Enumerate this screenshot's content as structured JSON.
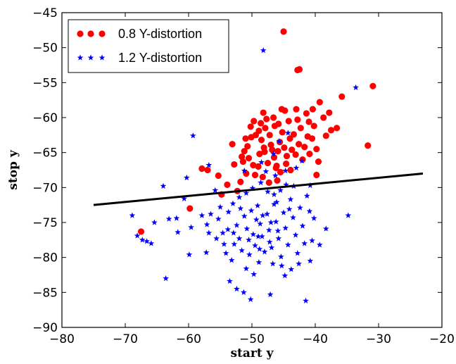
{
  "chart_data": {
    "type": "scatter",
    "title": "",
    "xlabel": "start  y",
    "ylabel": "stop  y",
    "xlim": [
      -80,
      -20
    ],
    "ylim": [
      -90,
      -45
    ],
    "xticks": [
      -80,
      -70,
      -60,
      -50,
      -40,
      -30,
      -20
    ],
    "yticks": [
      -90,
      -85,
      -80,
      -75,
      -70,
      -65,
      -60,
      -55,
      -50,
      -45
    ],
    "xtick_labels": [
      "−80",
      "−70",
      "−60",
      "−50",
      "−40",
      "−30",
      "−20"
    ],
    "ytick_labels": [
      "−90",
      "−85",
      "−80",
      "−75",
      "−70",
      "−65",
      "−60",
      "−55",
      "−50",
      "−45"
    ],
    "grid": false,
    "legend_position": "top-left",
    "series": [
      {
        "name": "0.8 Y-distortion",
        "marker": "circle",
        "color": "#ff0000",
        "points": [
          [
            -45.0,
            -47.7
          ],
          [
            -42.5,
            -53.1
          ],
          [
            -42.8,
            -53.2
          ],
          [
            -30.9,
            -55.5
          ],
          [
            -35.8,
            -57.0
          ],
          [
            -39.3,
            -57.8
          ],
          [
            -31.7,
            -64.0
          ],
          [
            -67.5,
            -76.3
          ],
          [
            -59.8,
            -73.0
          ],
          [
            -57.9,
            -67.3
          ],
          [
            -57.0,
            -67.5
          ],
          [
            -54.8,
            -71.0
          ],
          [
            -55.3,
            -68.3
          ],
          [
            -53.9,
            -69.6
          ],
          [
            -53.1,
            -63.8
          ],
          [
            -52.3,
            -70.5
          ],
          [
            -51.8,
            -69.2
          ],
          [
            -50.9,
            -68.0
          ],
          [
            -51.4,
            -66.3
          ],
          [
            -51.2,
            -64.8
          ],
          [
            -51.0,
            -63.0
          ],
          [
            -50.5,
            -65.8
          ],
          [
            -49.8,
            -66.8
          ],
          [
            -49.5,
            -68.2
          ],
          [
            -49.0,
            -67.0
          ],
          [
            -50.2,
            -61.3
          ],
          [
            -49.7,
            -60.5
          ],
          [
            -48.9,
            -61.9
          ],
          [
            -48.5,
            -63.2
          ],
          [
            -48.1,
            -64.3
          ],
          [
            -48.8,
            -65.2
          ],
          [
            -47.7,
            -60.2
          ],
          [
            -47.2,
            -62.5
          ],
          [
            -47.0,
            -63.9
          ],
          [
            -46.4,
            -61.2
          ],
          [
            -46.8,
            -64.6
          ],
          [
            -46.5,
            -65.7
          ],
          [
            -46.1,
            -66.9
          ],
          [
            -45.6,
            -63.5
          ],
          [
            -45.2,
            -62.1
          ],
          [
            -45.8,
            -60.9
          ],
          [
            -44.9,
            -64.3
          ],
          [
            -44.5,
            -65.5
          ],
          [
            -44.8,
            -59.0
          ],
          [
            -44.2,
            -60.5
          ],
          [
            -44.0,
            -63.0
          ],
          [
            -43.7,
            -64.6
          ],
          [
            -43.4,
            -62.4
          ],
          [
            -43.1,
            -65.3
          ],
          [
            -42.8,
            -60.3
          ],
          [
            -42.6,
            -63.8
          ],
          [
            -42.3,
            -61.5
          ],
          [
            -42.0,
            -66.0
          ],
          [
            -41.7,
            -64.2
          ],
          [
            -41.4,
            -59.4
          ],
          [
            -41.2,
            -62.7
          ],
          [
            -40.9,
            -65.2
          ],
          [
            -40.5,
            -63.0
          ],
          [
            -40.2,
            -61.2
          ],
          [
            -39.8,
            -64.5
          ],
          [
            -39.5,
            -66.3
          ],
          [
            -39.8,
            -68.2
          ],
          [
            -38.3,
            -62.6
          ],
          [
            -37.5,
            -61.8
          ],
          [
            -38.7,
            -60.0
          ],
          [
            -37.8,
            -59.3
          ],
          [
            -36.6,
            -61.5
          ],
          [
            -48.2,
            -59.3
          ],
          [
            -47.5,
            -66.5
          ],
          [
            -46.2,
            -67.2
          ],
          [
            -45.5,
            -67.8
          ],
          [
            -44.6,
            -66.6
          ],
          [
            -43.9,
            -67.5
          ],
          [
            -47.3,
            -69.3
          ],
          [
            -46.0,
            -69.0
          ],
          [
            -48.3,
            -68.5
          ],
          [
            -49.4,
            -62.5
          ],
          [
            -50.1,
            -62.8
          ],
          [
            -50.7,
            -64.1
          ],
          [
            -51.6,
            -65.6
          ],
          [
            -52.8,
            -66.7
          ],
          [
            -48.6,
            -60.8
          ],
          [
            -47.9,
            -61.5
          ],
          [
            -46.6,
            -60.0
          ],
          [
            -45.3,
            -58.8
          ],
          [
            -43.0,
            -58.8
          ],
          [
            -41.0,
            -60.6
          ],
          [
            -40.4,
            -58.8
          ],
          [
            -48.0,
            -64.9
          ],
          [
            -45.9,
            -64.8
          ]
        ]
      },
      {
        "name": "1.2 Y-distortion",
        "marker": "star",
        "color": "#0000ff",
        "points": [
          [
            -48.2,
            -50.4
          ],
          [
            -33.6,
            -55.7
          ],
          [
            -59.3,
            -62.6
          ],
          [
            -56.8,
            -66.8
          ],
          [
            -60.3,
            -68.6
          ],
          [
            -64.0,
            -69.8
          ],
          [
            -68.9,
            -74.0
          ],
          [
            -68.1,
            -76.9
          ],
          [
            -67.3,
            -77.5
          ],
          [
            -66.6,
            -77.7
          ],
          [
            -65.9,
            -78.0
          ],
          [
            -65.4,
            -75.0
          ],
          [
            -63.1,
            -74.5
          ],
          [
            -63.6,
            -83.0
          ],
          [
            -61.9,
            -74.4
          ],
          [
            -61.7,
            -76.4
          ],
          [
            -59.6,
            -75.7
          ],
          [
            -59.9,
            -79.6
          ],
          [
            -57.9,
            -74.0
          ],
          [
            -57.1,
            -75.3
          ],
          [
            -56.5,
            -73.8
          ],
          [
            -56.8,
            -76.5
          ],
          [
            -57.2,
            -79.3
          ],
          [
            -55.3,
            -74.5
          ],
          [
            -54.6,
            -76.5
          ],
          [
            -54.4,
            -78.1
          ],
          [
            -53.8,
            -76.0
          ],
          [
            -53.2,
            -80.4
          ],
          [
            -52.8,
            -78.1
          ],
          [
            -52.4,
            -75.4
          ],
          [
            -52.0,
            -77.3
          ],
          [
            -51.6,
            -79.0
          ],
          [
            -51.2,
            -74.1
          ],
          [
            -50.8,
            -75.9
          ],
          [
            -50.5,
            -77.5
          ],
          [
            -50.1,
            -73.3
          ],
          [
            -49.8,
            -76.7
          ],
          [
            -49.5,
            -78.3
          ],
          [
            -49.1,
            -72.6
          ],
          [
            -48.7,
            -75.2
          ],
          [
            -48.4,
            -77.0
          ],
          [
            -48.0,
            -79.2
          ],
          [
            -47.6,
            -73.8
          ],
          [
            -47.3,
            -76.1
          ],
          [
            -46.9,
            -78.6
          ],
          [
            -46.5,
            -72.4
          ],
          [
            -46.2,
            -74.9
          ],
          [
            -45.8,
            -77.3
          ],
          [
            -45.4,
            -79.9
          ],
          [
            -45.0,
            -73.6
          ],
          [
            -44.7,
            -75.8
          ],
          [
            -44.3,
            -78.2
          ],
          [
            -43.9,
            -71.7
          ],
          [
            -43.5,
            -74.3
          ],
          [
            -43.1,
            -76.8
          ],
          [
            -42.8,
            -79.4
          ],
          [
            -42.4,
            -72.9
          ],
          [
            -42.0,
            -75.5
          ],
          [
            -41.7,
            -78.0
          ],
          [
            -41.3,
            -71.2
          ],
          [
            -40.9,
            -73.4
          ],
          [
            -40.5,
            -77.6
          ],
          [
            -40.8,
            -80.5
          ],
          [
            -53.5,
            -83.4
          ],
          [
            -52.4,
            -84.5
          ],
          [
            -51.3,
            -85.0
          ],
          [
            -50.2,
            -86.0
          ],
          [
            -49.7,
            -82.4
          ],
          [
            -47.1,
            -85.3
          ],
          [
            -41.5,
            -86.2
          ],
          [
            -44.8,
            -82.6
          ],
          [
            -45.3,
            -81.2
          ],
          [
            -46.7,
            -80.9
          ],
          [
            -50.9,
            -81.6
          ],
          [
            -48.9,
            -80.7
          ],
          [
            -43.8,
            -81.7
          ],
          [
            -42.6,
            -80.9
          ],
          [
            -54.1,
            -79.4
          ],
          [
            -55.6,
            -77.3
          ],
          [
            -53.0,
            -72.3
          ],
          [
            -52.0,
            -71.4
          ],
          [
            -50.9,
            -70.8
          ],
          [
            -49.9,
            -70.1
          ],
          [
            -48.6,
            -69.3
          ],
          [
            -47.5,
            -70.6
          ],
          [
            -46.5,
            -71.0
          ],
          [
            -45.5,
            -70.4
          ],
          [
            -44.6,
            -69.6
          ],
          [
            -43.4,
            -69.8
          ],
          [
            -47.8,
            -67.7
          ],
          [
            -46.3,
            -68.3
          ],
          [
            -44.7,
            -67.6
          ],
          [
            -43.0,
            -67.2
          ],
          [
            -42.1,
            -66.2
          ],
          [
            -40.8,
            -69.7
          ],
          [
            -44.3,
            -62.2
          ],
          [
            -45.7,
            -63.4
          ],
          [
            -46.6,
            -65.2
          ],
          [
            -48.5,
            -66.4
          ],
          [
            -51.2,
            -67.6
          ],
          [
            -55.8,
            -70.4
          ],
          [
            -60.7,
            -71.6
          ],
          [
            -34.8,
            -74.0
          ],
          [
            -38.3,
            -75.9
          ],
          [
            -39.3,
            -78.2
          ],
          [
            -40.2,
            -74.4
          ],
          [
            -48.3,
            -74.0
          ],
          [
            -47.0,
            -75.0
          ],
          [
            -49.3,
            -74.6
          ],
          [
            -45.9,
            -76.2
          ],
          [
            -48.8,
            -78.8
          ],
          [
            -50.4,
            -79.6
          ],
          [
            -46.1,
            -72.1
          ],
          [
            -44.1,
            -73.1
          ],
          [
            -51.8,
            -73.0
          ],
          [
            -49.0,
            -77.0
          ],
          [
            -47.2,
            -77.8
          ],
          [
            -52.9,
            -76.5
          ],
          [
            -53.7,
            -73.5
          ],
          [
            -55.0,
            -72.8
          ]
        ]
      }
    ],
    "reference_line": {
      "x": [
        -75,
        -23
      ],
      "y": [
        -72.5,
        -68.0
      ],
      "color": "#000000"
    }
  }
}
